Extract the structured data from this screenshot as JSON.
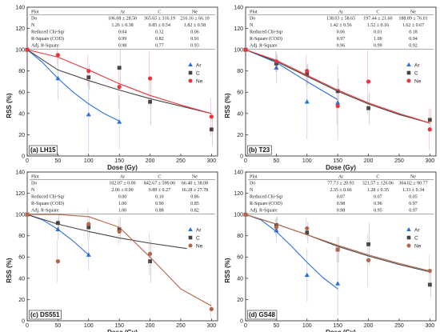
{
  "chart_data": [
    {
      "type": "scatter",
      "panel": "(a) LH15",
      "xlabel": "Dose (Gy)",
      "ylabel": "RSS (%)",
      "xlim": [
        0,
        310
      ],
      "ylim": [
        0,
        140
      ],
      "xticks": [
        0,
        50,
        100,
        150,
        200,
        250,
        300
      ],
      "yticks": [
        0,
        20,
        40,
        60,
        80,
        100,
        120,
        140
      ],
      "legend_position": "right",
      "table": {
        "columns": [
          "Plot",
          "Ar",
          "C",
          "Ne"
        ],
        "rows": [
          [
            "Do",
            "106.08 ± 28.50",
            "365.65 ± 316.19",
            "216.16 ± 66.10"
          ],
          [
            "N",
            "1.26 ± 0.38",
            "0.85 ± 0.54",
            "1.82 ± 0.58"
          ],
          [
            "Reduced Chi-Sqr",
            "0.04",
            "0.32",
            "0.06"
          ],
          [
            "R-Square (COD)",
            "0.99",
            "0.82",
            "0.91"
          ],
          [
            "Adj. R-Square",
            "0.98",
            "0.77",
            "0.93"
          ]
        ]
      },
      "series": [
        {
          "name": "Ar",
          "marker": "triangle",
          "color": "#2a6fdb",
          "x": [
            0,
            50,
            100,
            150
          ],
          "y": [
            100,
            73,
            39,
            32
          ],
          "err": [
            0,
            20,
            35,
            25
          ],
          "fit_x": [
            0,
            25,
            50,
            75,
            100,
            125,
            150
          ],
          "fit_y": [
            100,
            88,
            73,
            60,
            49,
            40,
            33
          ]
        },
        {
          "name": "C",
          "marker": "square",
          "color": "#444444",
          "x": [
            0,
            100,
            150,
            200,
            300
          ],
          "y": [
            100,
            74,
            83,
            51,
            25
          ],
          "err": [
            0,
            12,
            18,
            22,
            15
          ],
          "fit_x": [
            0,
            50,
            100,
            150,
            200,
            250,
            300
          ],
          "fit_y": [
            100,
            81,
            71,
            62,
            54,
            47,
            40
          ]
        },
        {
          "name": "Ne",
          "marker": "circle",
          "color": "#e8363c",
          "x": [
            0,
            50,
            100,
            150,
            200,
            300
          ],
          "y": [
            100,
            95,
            80,
            65,
            73,
            37
          ],
          "err": [
            0,
            8,
            15,
            20,
            25,
            18
          ],
          "fit_x": [
            0,
            50,
            100,
            150,
            200,
            250,
            300
          ],
          "fit_y": [
            100,
            93,
            81,
            68,
            57,
            48,
            40
          ]
        }
      ]
    },
    {
      "type": "scatter",
      "panel": "(b) T23",
      "xlabel": "Dose (Gy)",
      "ylabel": "RSS (%)",
      "xlim": [
        0,
        310
      ],
      "ylim": [
        0,
        140
      ],
      "xticks": [
        0,
        50,
        100,
        150,
        200,
        250,
        300
      ],
      "yticks": [
        0,
        20,
        40,
        60,
        80,
        100,
        120,
        140
      ],
      "legend_position": "right",
      "table": {
        "columns": [
          "Plot",
          "Ar",
          "C",
          "Ne"
        ],
        "rows": [
          [
            "Do",
            "138.03 ± 58.65",
            "197.44 ± 21.60",
            "188.89 ± 76.01"
          ],
          [
            "N",
            "1.42 ± 0.56",
            "1.52 ± 0.16",
            "1.62 ± 0.67"
          ],
          [
            "Reduced Chi-Sqr",
            "0.06",
            "0.01",
            "0.18"
          ],
          [
            "R-Square (COD)",
            "0.97",
            "1.00",
            "0.94"
          ],
          [
            "Adj. R-Square",
            "0.96",
            "0.99",
            "0.92"
          ]
        ]
      },
      "series": [
        {
          "name": "Ar",
          "marker": "triangle",
          "color": "#2a6fdb",
          "x": [
            0,
            50,
            100,
            150
          ],
          "y": [
            100,
            83,
            51,
            50
          ],
          "err": [
            0,
            15,
            35,
            35
          ],
          "fit_x": [
            0,
            50,
            100,
            150
          ],
          "fit_y": [
            100,
            88,
            70,
            53
          ]
        },
        {
          "name": "C",
          "marker": "square",
          "color": "#444444",
          "x": [
            0,
            50,
            100,
            150,
            200,
            300
          ],
          "y": [
            100,
            87,
            77,
            61,
            45,
            34
          ],
          "err": [
            0,
            8,
            10,
            12,
            15,
            10
          ],
          "fit_x": [
            0,
            50,
            100,
            150,
            200,
            250,
            300
          ],
          "fit_y": [
            100,
            89,
            75,
            61,
            49,
            39,
            31
          ]
        },
        {
          "name": "Ne",
          "marker": "circle",
          "color": "#e8363c",
          "x": [
            0,
            50,
            100,
            150,
            200,
            300
          ],
          "y": [
            100,
            89,
            80,
            47,
            70,
            25
          ],
          "err": [
            0,
            10,
            15,
            18,
            30,
            20
          ],
          "fit_x": [
            0,
            50,
            100,
            150,
            200,
            250,
            300
          ],
          "fit_y": [
            100,
            90,
            76,
            62,
            50,
            40,
            31
          ]
        }
      ]
    },
    {
      "type": "scatter",
      "panel": "(c) DS551",
      "xlabel": "Dose (Gy)",
      "ylabel": "RSS (%)",
      "xlim": [
        0,
        310
      ],
      "ylim": [
        0,
        140
      ],
      "xticks": [
        0,
        50,
        100,
        150,
        200,
        250,
        300
      ],
      "yticks": [
        0,
        20,
        40,
        60,
        80,
        100,
        120,
        140
      ],
      "legend_position": "right",
      "table": {
        "columns": [
          "Plot",
          "Ar",
          "C",
          "Ne"
        ],
        "rows": [
          [
            "Do",
            "102.07 ± 0.00",
            "842.67 ± 590.00",
            "66.40 ± 38.08"
          ],
          [
            "N",
            "2.06 ± 0.00",
            "0.89 ± 0.27",
            "16.28 ± 27.78"
          ],
          [
            "Reduced Chi-Sqr",
            "0.00",
            "0.10",
            "0.86"
          ],
          [
            "R-Square (COD)",
            "1.00",
            "0.90",
            "0.85"
          ],
          [
            "Adj. R-Square",
            "1.00",
            "0.88",
            "0.82"
          ]
        ]
      },
      "series": [
        {
          "name": "Ar",
          "marker": "triangle",
          "color": "#2a6fdb",
          "x": [
            0,
            50,
            100
          ],
          "y": [
            100,
            86,
            62
          ],
          "err": [
            0,
            10,
            15
          ],
          "fit_x": [
            0,
            25,
            50,
            75,
            100
          ],
          "fit_y": [
            100,
            95,
            86,
            75,
            62
          ]
        },
        {
          "name": "C",
          "marker": "square",
          "color": "#444444",
          "x": [
            0,
            50,
            100,
            150,
            200
          ],
          "y": [
            100,
            92,
            88,
            86,
            56
          ],
          "err": [
            0,
            8,
            10,
            12,
            20
          ],
          "fit_x": [
            0,
            50,
            100,
            150,
            200,
            260
          ],
          "fit_y": [
            100,
            91,
            84,
            78,
            73,
            68
          ]
        },
        {
          "name": "Ne",
          "marker": "circle",
          "color": "#b5654a",
          "x": [
            0,
            50,
            100,
            150,
            200,
            300
          ],
          "y": [
            100,
            56,
            91,
            84,
            63,
            11
          ],
          "err": [
            0,
            20,
            15,
            12,
            20,
            8
          ],
          "fit_x": [
            0,
            50,
            100,
            150,
            200,
            250,
            300
          ],
          "fit_y": [
            100,
            100,
            98,
            88,
            60,
            30,
            14
          ]
        }
      ]
    },
    {
      "type": "scatter",
      "panel": "(d) GS48",
      "xlabel": "Dose (Gy)",
      "ylabel": "RSS (%)",
      "xlim": [
        0,
        310
      ],
      "ylim": [
        0,
        140
      ],
      "xticks": [
        0,
        50,
        100,
        150,
        200,
        250,
        300
      ],
      "yticks": [
        0,
        20,
        40,
        60,
        80,
        100,
        120,
        140
      ],
      "legend_position": "right",
      "table": {
        "columns": [
          "Plot",
          "Ar",
          "C",
          "Ne"
        ],
        "rows": [
          [
            "Do",
            "77.73 ± 20.93",
            "321.57 ± 126.06",
            "304.02 ± 90.77"
          ],
          [
            "N",
            "2.35 ± 0.66",
            "1.28 ± 0.35",
            "1.33 ± 0.34"
          ],
          [
            "Reduced Chi-Sqr",
            "0.07",
            "0.07",
            "0.05"
          ],
          [
            "R-Square (COD)",
            "0.98",
            "0.96",
            "0.97"
          ],
          [
            "Adj. R-Square",
            "0.98",
            "0.95",
            "0.97"
          ]
        ]
      },
      "series": [
        {
          "name": "Ar",
          "marker": "triangle",
          "color": "#2a6fdb",
          "x": [
            0,
            50,
            100,
            150
          ],
          "y": [
            100,
            85,
            43,
            35
          ],
          "err": [
            0,
            12,
            25,
            30
          ],
          "fit_x": [
            0,
            25,
            50,
            75,
            100,
            125,
            150
          ],
          "fit_y": [
            100,
            95,
            84,
            70,
            55,
            41,
            30
          ]
        },
        {
          "name": "C",
          "marker": "square",
          "color": "#444444",
          "x": [
            0,
            50,
            100,
            150,
            200,
            300
          ],
          "y": [
            100,
            90,
            83,
            67,
            72,
            34
          ],
          "err": [
            0,
            8,
            10,
            12,
            20,
            12
          ],
          "fit_x": [
            0,
            50,
            100,
            150,
            200,
            250,
            300
          ],
          "fit_y": [
            100,
            91,
            81,
            70,
            61,
            53,
            46
          ]
        },
        {
          "name": "Ne",
          "marker": "circle",
          "color": "#b5654a",
          "x": [
            0,
            50,
            100,
            150,
            200,
            300
          ],
          "y": [
            100,
            88,
            87,
            67,
            57,
            47
          ],
          "err": [
            0,
            8,
            10,
            12,
            25,
            15
          ],
          "fit_x": [
            0,
            50,
            100,
            150,
            200,
            250,
            300
          ],
          "fit_y": [
            100,
            91,
            81,
            71,
            62,
            54,
            47
          ]
        }
      ]
    }
  ]
}
